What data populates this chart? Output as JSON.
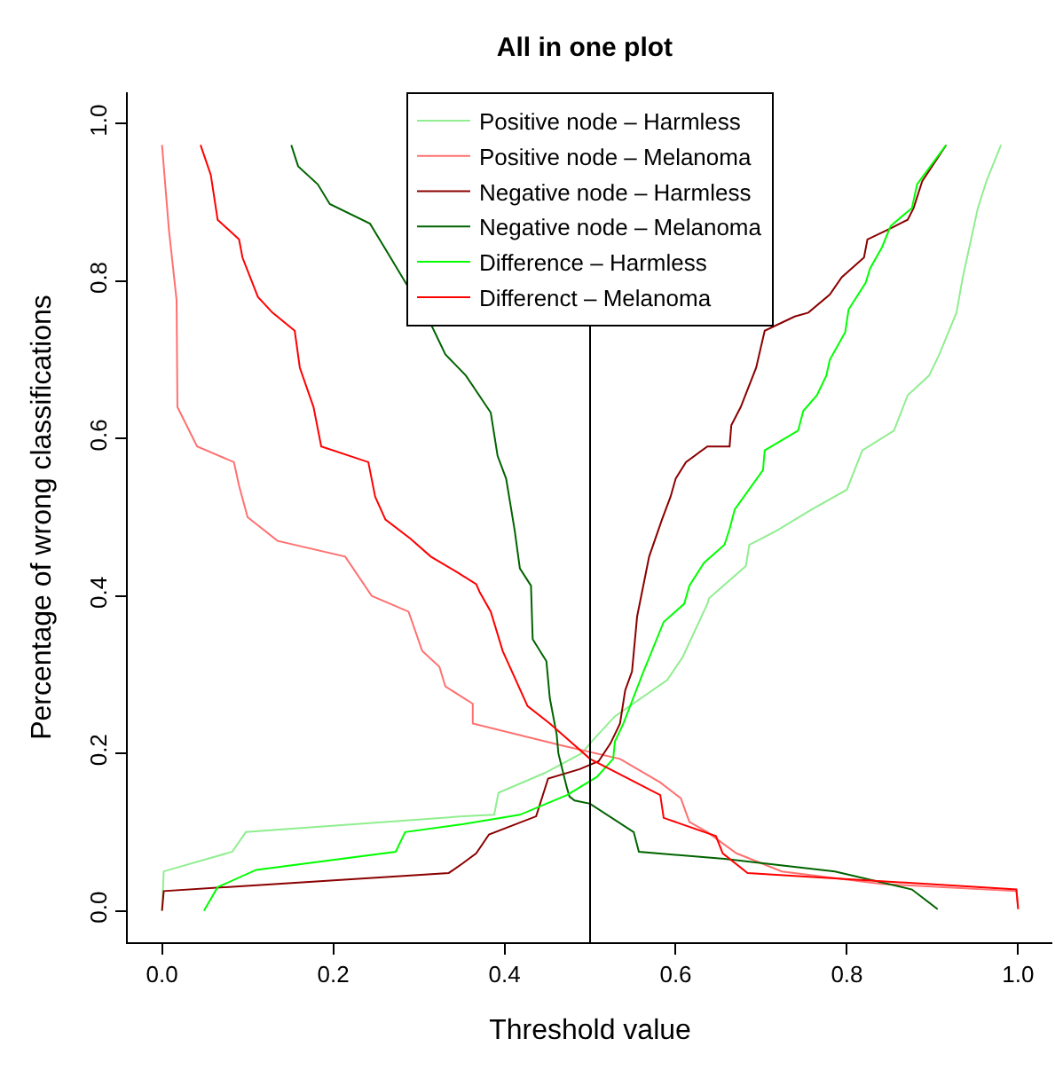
{
  "chart_data": {
    "type": "line",
    "title": "All in one plot",
    "xlabel": "Threshold value",
    "ylabel": "Percentage of wrong classifications",
    "xlim": [
      -0.04,
      1.04
    ],
    "ylim": [
      -0.04,
      1.04
    ],
    "xticks": [
      {
        "value": 0,
        "label": "0.0"
      },
      0.2,
      0.4,
      0.6,
      0.8,
      {
        "value": 1,
        "label": "1.0"
      }
    ],
    "yticks": [
      {
        "value": 0,
        "label": "0.0"
      },
      0.2,
      0.4,
      0.6,
      0.8,
      {
        "value": 1,
        "label": "1.0"
      }
    ],
    "grid": false,
    "legend": "top",
    "marker": "none",
    "line_style": "solid",
    "ref_lines": [
      {
        "axis": "x",
        "value": 0.5,
        "color": "#000000"
      }
    ],
    "series": [
      {
        "name": "Positive node – Harmless",
        "color": "#90ee90",
        "x": [
          0,
          0.002,
          0.082,
          0.098,
          0.352,
          0.388,
          0.393,
          0.447,
          0.49,
          0.506,
          0.529,
          0.59,
          0.608,
          0.637,
          0.639,
          0.682,
          0.686,
          0.718,
          0.759,
          0.8,
          0.818,
          0.855,
          0.871,
          0.896,
          0.908,
          0.928,
          0.935,
          0.953,
          0.963,
          0.98
        ],
        "values": [
          0,
          0.05,
          0.075,
          0.1,
          0.12,
          0.122,
          0.15,
          0.175,
          0.2,
          0.22,
          0.247,
          0.293,
          0.322,
          0.39,
          0.397,
          0.438,
          0.465,
          0.483,
          0.51,
          0.535,
          0.585,
          0.61,
          0.655,
          0.68,
          0.707,
          0.76,
          0.803,
          0.893,
          0.927,
          0.973
        ]
      },
      {
        "name": "Positive node – Melanoma",
        "color": "#ff7070",
        "x": [
          0,
          0.008,
          0.017,
          0.018,
          0.041,
          0.084,
          0.09,
          0.1,
          0.135,
          0.214,
          0.245,
          0.288,
          0.304,
          0.324,
          0.331,
          0.363,
          0.363,
          0.467,
          0.535,
          0.582,
          0.606,
          0.616,
          0.637,
          0.671,
          0.724,
          0.84,
          0.998,
          1
        ],
        "values": [
          0.973,
          0.866,
          0.776,
          0.64,
          0.59,
          0.57,
          0.54,
          0.5,
          0.47,
          0.45,
          0.4,
          0.38,
          0.33,
          0.31,
          0.285,
          0.263,
          0.238,
          0.21,
          0.193,
          0.163,
          0.143,
          0.113,
          0.1,
          0.073,
          0.05,
          0.034,
          0.025,
          0.005
        ]
      },
      {
        "name": "Negative node – Harmless",
        "color": "#8b0000",
        "x": [
          0,
          0.002,
          0.335,
          0.351,
          0.367,
          0.382,
          0.437,
          0.451,
          0.488,
          0.51,
          0.524,
          0.535,
          0.541,
          0.549,
          0.555,
          0.569,
          0.584,
          0.594,
          0.6,
          0.612,
          0.637,
          0.663,
          0.665,
          0.676,
          0.694,
          0.704,
          0.739,
          0.755,
          0.78,
          0.794,
          0.82,
          0.824,
          0.849,
          0.871,
          0.878,
          0.888,
          0.916
        ],
        "values": [
          0,
          0.025,
          0.048,
          0.06,
          0.073,
          0.097,
          0.12,
          0.168,
          0.18,
          0.19,
          0.213,
          0.238,
          0.28,
          0.304,
          0.374,
          0.45,
          0.497,
          0.526,
          0.549,
          0.57,
          0.59,
          0.59,
          0.617,
          0.64,
          0.69,
          0.737,
          0.755,
          0.76,
          0.783,
          0.805,
          0.83,
          0.853,
          0.866,
          0.878,
          0.893,
          0.927,
          0.973
        ]
      },
      {
        "name": "Negative node – Melanoma",
        "color": "#006400",
        "x": [
          0.151,
          0.159,
          0.182,
          0.196,
          0.243,
          0.263,
          0.316,
          0.331,
          0.355,
          0.384,
          0.392,
          0.402,
          0.412,
          0.418,
          0.431,
          0.433,
          0.449,
          0.453,
          0.461,
          0.463,
          0.473,
          0.476,
          0.482,
          0.5,
          0.551,
          0.557,
          0.657,
          0.786,
          0.876,
          0.906
        ],
        "values": [
          0.973,
          0.946,
          0.923,
          0.898,
          0.873,
          0.837,
          0.741,
          0.707,
          0.68,
          0.633,
          0.578,
          0.549,
          0.483,
          0.435,
          0.413,
          0.345,
          0.317,
          0.27,
          0.224,
          0.2,
          0.156,
          0.145,
          0.14,
          0.136,
          0.1,
          0.075,
          0.066,
          0.05,
          0.027,
          0.002
        ]
      },
      {
        "name": "Difference – Harmless",
        "color": "#00ff00",
        "x": [
          0.049,
          0.065,
          0.11,
          0.273,
          0.284,
          0.351,
          0.418,
          0.473,
          0.508,
          0.527,
          0.529,
          0.539,
          0.561,
          0.586,
          0.61,
          0.616,
          0.633,
          0.657,
          0.663,
          0.669,
          0.702,
          0.704,
          0.743,
          0.749,
          0.765,
          0.776,
          0.78,
          0.798,
          0.802,
          0.822,
          0.827,
          0.841,
          0.851,
          0.876,
          0.882,
          0.916
        ],
        "values": [
          0,
          0.03,
          0.052,
          0.075,
          0.1,
          0.11,
          0.122,
          0.147,
          0.17,
          0.193,
          0.215,
          0.238,
          0.3,
          0.367,
          0.39,
          0.413,
          0.442,
          0.465,
          0.485,
          0.51,
          0.56,
          0.585,
          0.61,
          0.635,
          0.655,
          0.68,
          0.7,
          0.735,
          0.764,
          0.798,
          0.816,
          0.843,
          0.87,
          0.893,
          0.923,
          0.973
        ]
      },
      {
        "name": "Differenct – Melanoma",
        "color": "#ff0000",
        "x": [
          0.045,
          0.057,
          0.065,
          0.09,
          0.094,
          0.112,
          0.129,
          0.155,
          0.161,
          0.177,
          0.186,
          0.241,
          0.249,
          0.261,
          0.29,
          0.314,
          0.345,
          0.367,
          0.371,
          0.384,
          0.398,
          0.427,
          0.453,
          0.5,
          0.582,
          0.586,
          0.647,
          0.655,
          0.684,
          0.998,
          1
        ],
        "values": [
          0.973,
          0.935,
          0.878,
          0.853,
          0.83,
          0.78,
          0.76,
          0.737,
          0.69,
          0.64,
          0.59,
          0.57,
          0.526,
          0.497,
          0.473,
          0.45,
          0.43,
          0.415,
          0.405,
          0.38,
          0.33,
          0.26,
          0.238,
          0.193,
          0.147,
          0.118,
          0.095,
          0.073,
          0.048,
          0.027,
          0.002
        ]
      }
    ]
  }
}
